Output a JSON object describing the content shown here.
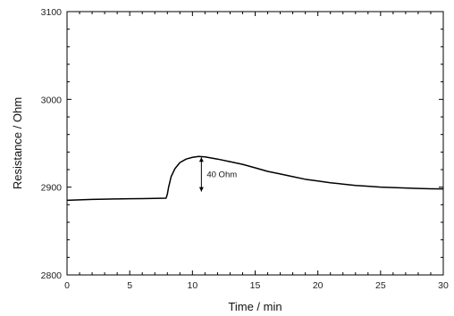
{
  "chart_data": {
    "type": "line",
    "title": "",
    "xlabel": "Time / min",
    "ylabel": "Resistance / Ohm",
    "xlim": [
      0,
      30
    ],
    "ylim": [
      2800,
      3100
    ],
    "x_ticks": [
      0,
      5,
      10,
      15,
      20,
      25,
      30
    ],
    "y_ticks": [
      2800,
      2900,
      3000,
      3100
    ],
    "x_tick_labels": [
      "0",
      "5",
      "10",
      "15",
      "20",
      "25",
      "30"
    ],
    "y_tick_labels": [
      "2800",
      "2900",
      "3000",
      "3100"
    ],
    "x_minor_step": 1,
    "y_minor_step": 20,
    "grid": false,
    "legend": "none",
    "line_color": "#000000",
    "series": [
      {
        "x": [
          0,
          1,
          2,
          3,
          4,
          5,
          6,
          7,
          7.5,
          7.9,
          8.0,
          8.1,
          8.3,
          8.6,
          9.0,
          9.5,
          10.0,
          10.5,
          11.0,
          12.0,
          13.0,
          14.0,
          15.0,
          16.0,
          17.0,
          18.0,
          19.0,
          20.0,
          21.0,
          22.0,
          23.0,
          24.0,
          25.0,
          26.0,
          27.0,
          28.0,
          29.0,
          30.0
        ],
        "y": [
          2885,
          2885.5,
          2886,
          2886.3,
          2886.6,
          2886.8,
          2887,
          2887.2,
          2887.3,
          2887.5,
          2892,
          2900,
          2912,
          2921,
          2928,
          2932,
          2934,
          2935,
          2934.5,
          2932,
          2929,
          2926,
          2922,
          2918,
          2915,
          2912,
          2909,
          2907,
          2905,
          2903.5,
          2902,
          2901,
          2900,
          2899.5,
          2899,
          2898.5,
          2898.2,
          2898
        ]
      }
    ],
    "annotations": [
      {
        "text": "40 Ohm",
        "x": 10.5,
        "y_from": 2935,
        "y_to": 2895
      }
    ]
  }
}
